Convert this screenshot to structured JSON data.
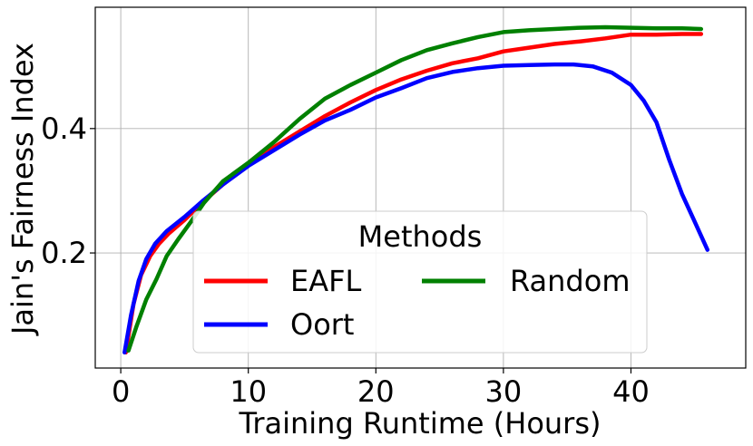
{
  "chart_data": {
    "type": "line",
    "title": "",
    "xlabel": "Training Runtime (Hours)",
    "ylabel": "Jain's Fairness Index",
    "xlim": [
      -2,
      49
    ],
    "ylim": [
      0.015,
      0.595
    ],
    "x_ticks": [
      0,
      10,
      20,
      30,
      40
    ],
    "x_tick_labels": [
      "0",
      "10",
      "20",
      "30",
      "40"
    ],
    "y_ticks": [
      0.2,
      0.4
    ],
    "y_tick_labels": [
      "0.2",
      "0.4"
    ],
    "grid": true,
    "legend": {
      "title": "Methods",
      "placement": "lower-center",
      "columns": 2
    },
    "series": [
      {
        "name": "EAFL",
        "color": "#ff0000",
        "x": [
          0.4,
          1.0,
          1.6,
          2.3,
          3.0,
          3.8,
          5.0,
          6.5,
          8.0,
          10.0,
          12.0,
          14.0,
          16.0,
          18.0,
          20.0,
          22.0,
          24.0,
          26.0,
          28.0,
          30.0,
          32.0,
          34.0,
          36.0,
          38.0,
          40.0,
          42.0,
          44.0,
          45.5
        ],
        "y": [
          0.04,
          0.118,
          0.165,
          0.195,
          0.215,
          0.232,
          0.253,
          0.283,
          0.31,
          0.342,
          0.37,
          0.395,
          0.42,
          0.442,
          0.462,
          0.479,
          0.493,
          0.505,
          0.513,
          0.524,
          0.53,
          0.536,
          0.54,
          0.545,
          0.551,
          0.551,
          0.552,
          0.552
        ]
      },
      {
        "name": "Oort",
        "color": "#0000ff",
        "x": [
          0.3,
          0.8,
          1.4,
          2.0,
          2.7,
          3.6,
          5.0,
          6.5,
          8.0,
          10.0,
          12.0,
          14.0,
          16.0,
          18.0,
          20.0,
          22.0,
          24.0,
          26.0,
          28.0,
          30.0,
          32.0,
          34.0,
          35.5,
          37.0,
          38.5,
          40.0,
          41.0,
          42.0,
          43.0,
          44.0,
          45.0,
          46.0
        ],
        "y": [
          0.04,
          0.1,
          0.155,
          0.19,
          0.215,
          0.235,
          0.258,
          0.285,
          0.31,
          0.34,
          0.365,
          0.39,
          0.413,
          0.43,
          0.45,
          0.465,
          0.481,
          0.491,
          0.497,
          0.501,
          0.502,
          0.503,
          0.503,
          0.5,
          0.49,
          0.47,
          0.445,
          0.41,
          0.35,
          0.295,
          0.25,
          0.205
        ]
      },
      {
        "name": "Random",
        "color": "#008000",
        "x": [
          0.6,
          1.2,
          2.0,
          2.8,
          3.6,
          4.5,
          5.5,
          6.5,
          8.0,
          10.0,
          12.0,
          14.0,
          16.0,
          18.0,
          20.0,
          22.0,
          24.0,
          26.0,
          28.0,
          30.0,
          32.0,
          34.0,
          36.0,
          38.0,
          40.0,
          42.0,
          44.0,
          45.5
        ],
        "y": [
          0.043,
          0.08,
          0.125,
          0.158,
          0.195,
          0.222,
          0.25,
          0.28,
          0.315,
          0.345,
          0.378,
          0.415,
          0.448,
          0.47,
          0.49,
          0.51,
          0.526,
          0.537,
          0.547,
          0.555,
          0.558,
          0.56,
          0.562,
          0.563,
          0.562,
          0.561,
          0.561,
          0.56
        ]
      }
    ]
  }
}
